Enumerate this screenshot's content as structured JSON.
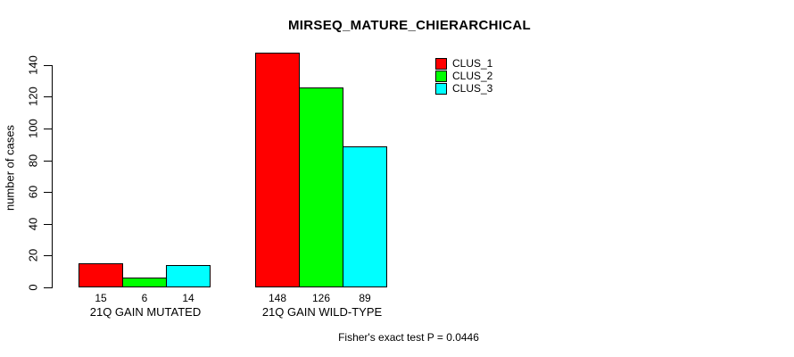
{
  "chart_data": {
    "type": "bar",
    "title": "MIRSEQ_MATURE_CHIERARCHICAL",
    "ylabel": "number of cases",
    "xlabel": "",
    "categories": [
      "21Q GAIN MUTATED",
      "21Q GAIN WILD-TYPE"
    ],
    "series": [
      {
        "name": "CLUS_1",
        "color": "#FF0000",
        "values": [
          15,
          148
        ]
      },
      {
        "name": "CLUS_2",
        "color": "#00FF00",
        "values": [
          6,
          126
        ]
      },
      {
        "name": "CLUS_3",
        "color": "#00FFFF",
        "values": [
          14,
          89
        ]
      }
    ],
    "bar_value_labels": [
      [
        "15",
        "6",
        "14"
      ],
      [
        "148",
        "126",
        "89"
      ]
    ],
    "yticks": [
      0,
      20,
      40,
      60,
      80,
      100,
      120,
      140
    ],
    "ylim": [
      0,
      148
    ],
    "grid": false,
    "legend_position": "top-right",
    "annotation": "Fisher's exact test P = 0.0446",
    "colors": {
      "background": "#FFFFFF",
      "axis": "#000000",
      "bar_border": "#000000",
      "text": "#000000"
    }
  }
}
